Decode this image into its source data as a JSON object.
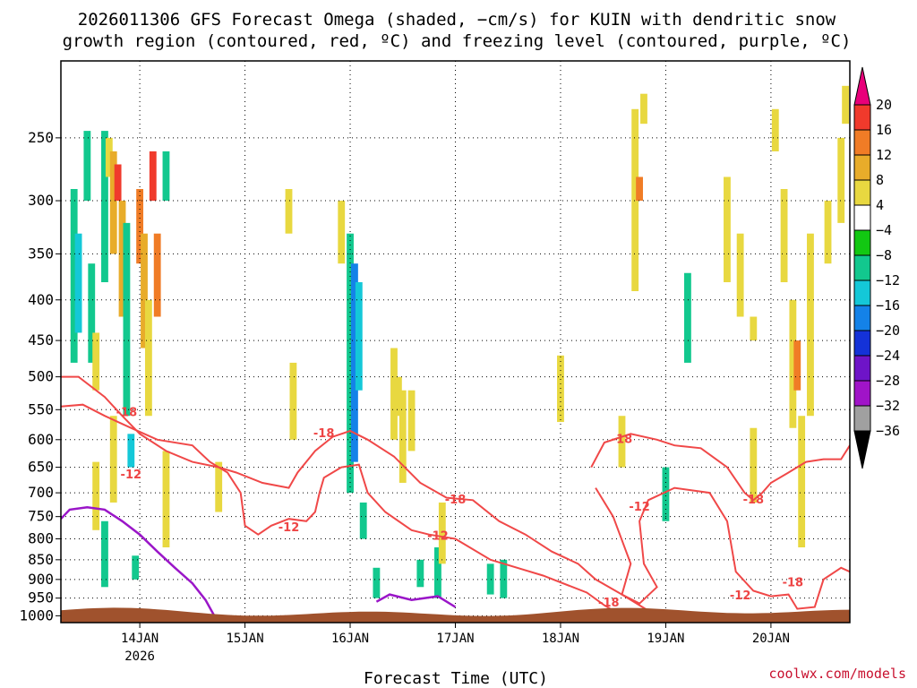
{
  "title": {
    "line1": "2026011306 GFS Forecast Omega (shaded, −cm/s) for KUIN with dendritic snow",
    "line2": "growth region (contoured, red, ºC) and freezing level (contoured, purple, ºC)"
  },
  "credit": "coolwx.com/models",
  "colors": {
    "dgz_contour": "#f04848",
    "freezing_contour": "#9a16c8",
    "terrain": "#a0522d",
    "grid": "#000000"
  },
  "chart_data": {
    "type": "heatmap",
    "xlabel": "Forecast Time (UTC)",
    "ylabel": "",
    "x_ticks": [
      {
        "day": "14JAN",
        "year": "2026",
        "t": 18
      },
      {
        "day": "15JAN",
        "year": "",
        "t": 42
      },
      {
        "day": "16JAN",
        "year": "",
        "t": 66
      },
      {
        "day": "17JAN",
        "year": "",
        "t": 90
      },
      {
        "day": "18JAN",
        "year": "",
        "t": 114
      },
      {
        "day": "19JAN",
        "year": "",
        "t": 138
      },
      {
        "day": "20JAN",
        "year": "",
        "t": 162
      }
    ],
    "xlim_hours": [
      0,
      180
    ],
    "y_ticks": [
      250,
      300,
      350,
      400,
      450,
      500,
      550,
      600,
      650,
      700,
      750,
      800,
      850,
      900,
      950,
      1000
    ],
    "ylim_hPa": [
      200,
      1020
    ],
    "y_scale": "log",
    "grid": true,
    "colorbar": {
      "levels": [
        "20",
        "16",
        "12",
        "8",
        "4",
        "−4",
        "−8",
        "−12",
        "−16",
        "−20",
        "−24",
        "−28",
        "−32",
        "−36"
      ],
      "colors": [
        "#e8007a",
        "#f03a2c",
        "#f07c26",
        "#e8ac2a",
        "#e8d840",
        "#ffffff",
        "#12c812",
        "#12c88e",
        "#14c8d8",
        "#1482e8",
        "#1432d8",
        "#6e14c8",
        "#a014c8",
        "#a0a0a0",
        "#000000"
      ]
    },
    "dgz_contour_labels": [
      {
        "text": "-18",
        "t": 15,
        "p": 555
      },
      {
        "text": "-12",
        "t": 16,
        "p": 665
      },
      {
        "text": "-12",
        "t": 52,
        "p": 775
      },
      {
        "text": "-18",
        "t": 60,
        "p": 590
      },
      {
        "text": "-18",
        "t": 90,
        "p": 715
      },
      {
        "text": "-12",
        "t": 86,
        "p": 795
      },
      {
        "text": "-18",
        "t": 128,
        "p": 600
      },
      {
        "text": "-12",
        "t": 132,
        "p": 730
      },
      {
        "text": "-18",
        "t": 125,
        "p": 965
      },
      {
        "text": "-18",
        "t": 158,
        "p": 715
      },
      {
        "text": "-12",
        "t": 155,
        "p": 945
      },
      {
        "text": "-18",
        "t": 167,
        "p": 910
      }
    ],
    "dgz_contours": [
      {
        "label": "-12 west",
        "points": [
          [
            0,
            545
          ],
          [
            5,
            542
          ],
          [
            10,
            560
          ],
          [
            16,
            580
          ],
          [
            22,
            600
          ],
          [
            30,
            610
          ],
          [
            34,
            640
          ],
          [
            38,
            660
          ],
          [
            41,
            700
          ],
          [
            42,
            770
          ],
          [
            45,
            790
          ],
          [
            48,
            770
          ],
          [
            52,
            755
          ],
          [
            56,
            760
          ],
          [
            58,
            740
          ],
          [
            59,
            700
          ],
          [
            60,
            670
          ],
          [
            64,
            650
          ],
          [
            68,
            645
          ],
          [
            70,
            700
          ],
          [
            74,
            740
          ],
          [
            80,
            780
          ],
          [
            84,
            790
          ],
          [
            90,
            800
          ],
          [
            98,
            850
          ],
          [
            110,
            890
          ],
          [
            120,
            935
          ],
          [
            124,
            970
          ],
          [
            128,
            1000
          ]
        ]
      },
      {
        "label": "-18 west",
        "points": [
          [
            0,
            500
          ],
          [
            4,
            500
          ],
          [
            10,
            530
          ],
          [
            14,
            560
          ],
          [
            18,
            590
          ],
          [
            24,
            620
          ],
          [
            30,
            640
          ],
          [
            36,
            650
          ],
          [
            40,
            660
          ],
          [
            46,
            680
          ],
          [
            52,
            690
          ],
          [
            54,
            660
          ],
          [
            58,
            620
          ],
          [
            62,
            595
          ],
          [
            66,
            585
          ],
          [
            70,
            600
          ],
          [
            76,
            630
          ],
          [
            82,
            680
          ],
          [
            88,
            710
          ],
          [
            94,
            715
          ],
          [
            100,
            760
          ],
          [
            106,
            790
          ],
          [
            112,
            830
          ],
          [
            118,
            860
          ],
          [
            122,
            900
          ],
          [
            128,
            940
          ],
          [
            134,
            985
          ]
        ]
      },
      {
        "label": "-18 east loop",
        "points": [
          [
            121,
            650
          ],
          [
            124,
            605
          ],
          [
            130,
            590
          ],
          [
            136,
            600
          ],
          [
            140,
            610
          ],
          [
            146,
            615
          ],
          [
            152,
            650
          ],
          [
            156,
            700
          ],
          [
            158,
            715
          ],
          [
            160,
            700
          ],
          [
            162,
            680
          ],
          [
            166,
            660
          ],
          [
            170,
            640
          ],
          [
            174,
            635
          ],
          [
            178,
            635
          ],
          [
            180,
            610
          ]
        ]
      },
      {
        "label": "-12 east loop",
        "points": [
          [
            122,
            690
          ],
          [
            126,
            750
          ],
          [
            130,
            860
          ],
          [
            128,
            940
          ],
          [
            132,
            965
          ],
          [
            136,
            920
          ],
          [
            133,
            860
          ],
          [
            132,
            760
          ],
          [
            134,
            715
          ],
          [
            140,
            690
          ],
          [
            148,
            700
          ],
          [
            152,
            760
          ],
          [
            154,
            880
          ],
          [
            158,
            930
          ],
          [
            162,
            945
          ],
          [
            166,
            940
          ],
          [
            168,
            980
          ],
          [
            172,
            975
          ],
          [
            174,
            900
          ],
          [
            178,
            870
          ],
          [
            180,
            880
          ]
        ]
      }
    ],
    "freezing_contour": {
      "label": "0",
      "points": [
        [
          0,
          755
        ],
        [
          2,
          735
        ],
        [
          6,
          730
        ],
        [
          10,
          735
        ],
        [
          14,
          760
        ],
        [
          18,
          790
        ],
        [
          22,
          830
        ],
        [
          26,
          870
        ],
        [
          30,
          910
        ],
        [
          33,
          955
        ],
        [
          35,
          1000
        ]
      ]
    },
    "freezing_blob": {
      "points": [
        [
          72,
          960
        ],
        [
          75,
          940
        ],
        [
          80,
          955
        ],
        [
          86,
          945
        ],
        [
          90,
          975
        ]
      ]
    },
    "omega_cells": [
      {
        "t": 3,
        "p0": 290,
        "p1": 480,
        "v": -8
      },
      {
        "t": 4,
        "p0": 330,
        "p1": 440,
        "v": -12
      },
      {
        "t": 6,
        "p0": 245,
        "p1": 300,
        "v": -8
      },
      {
        "t": 7,
        "p0": 360,
        "p1": 480,
        "v": -8
      },
      {
        "t": 8,
        "p0": 440,
        "p1": 520,
        "v": 4
      },
      {
        "t": 10,
        "p0": 245,
        "p1": 380,
        "v": -8
      },
      {
        "t": 11,
        "p0": 250,
        "p1": 280,
        "v": 4
      },
      {
        "t": 12,
        "p0": 260,
        "p1": 350,
        "v": 8
      },
      {
        "t": 13,
        "p0": 270,
        "p1": 300,
        "v": 16
      },
      {
        "t": 14,
        "p0": 300,
        "p1": 420,
        "v": 8
      },
      {
        "t": 15,
        "p0": 320,
        "p1": 560,
        "v": -8
      },
      {
        "t": 16,
        "p0": 590,
        "p1": 650,
        "v": -12
      },
      {
        "t": 18,
        "p0": 290,
        "p1": 360,
        "v": 12
      },
      {
        "t": 19,
        "p0": 330,
        "p1": 460,
        "v": 8
      },
      {
        "t": 20,
        "p0": 400,
        "p1": 560,
        "v": 4
      },
      {
        "t": 21,
        "p0": 260,
        "p1": 300,
        "v": 16
      },
      {
        "t": 22,
        "p0": 330,
        "p1": 420,
        "v": 12
      },
      {
        "t": 24,
        "p0": 260,
        "p1": 300,
        "v": -8
      },
      {
        "t": 8,
        "p0": 640,
        "p1": 780,
        "v": 4
      },
      {
        "t": 10,
        "p0": 760,
        "p1": 920,
        "v": -8
      },
      {
        "t": 12,
        "p0": 560,
        "p1": 720,
        "v": 4
      },
      {
        "t": 17,
        "p0": 840,
        "p1": 900,
        "v": -8
      },
      {
        "t": 24,
        "p0": 620,
        "p1": 820,
        "v": 4
      },
      {
        "t": 36,
        "p0": 640,
        "p1": 740,
        "v": 4
      },
      {
        "t": 52,
        "p0": 290,
        "p1": 330,
        "v": 4
      },
      {
        "t": 53,
        "p0": 480,
        "p1": 600,
        "v": 4
      },
      {
        "t": 64,
        "p0": 300,
        "p1": 360,
        "v": 4
      },
      {
        "t": 66,
        "p0": 330,
        "p1": 700,
        "v": -8
      },
      {
        "t": 67,
        "p0": 360,
        "p1": 640,
        "v": -16
      },
      {
        "t": 68,
        "p0": 380,
        "p1": 520,
        "v": -12
      },
      {
        "t": 69,
        "p0": 720,
        "p1": 800,
        "v": -8
      },
      {
        "t": 72,
        "p0": 870,
        "p1": 950,
        "v": -8
      },
      {
        "t": 76,
        "p0": 460,
        "p1": 600,
        "v": 4
      },
      {
        "t": 77,
        "p0": 500,
        "p1": 560,
        "v": 4
      },
      {
        "t": 78,
        "p0": 520,
        "p1": 680,
        "v": 4
      },
      {
        "t": 80,
        "p0": 520,
        "p1": 620,
        "v": 4
      },
      {
        "t": 82,
        "p0": 850,
        "p1": 920,
        "v": -8
      },
      {
        "t": 86,
        "p0": 820,
        "p1": 950,
        "v": -8
      },
      {
        "t": 87,
        "p0": 720,
        "p1": 860,
        "v": 4
      },
      {
        "t": 98,
        "p0": 860,
        "p1": 940,
        "v": -8
      },
      {
        "t": 101,
        "p0": 850,
        "p1": 950,
        "v": -8
      },
      {
        "t": 114,
        "p0": 470,
        "p1": 570,
        "v": 4
      },
      {
        "t": 131,
        "p0": 230,
        "p1": 390,
        "v": 4
      },
      {
        "t": 133,
        "p0": 220,
        "p1": 240,
        "v": 4
      },
      {
        "t": 132,
        "p0": 280,
        "p1": 300,
        "v": 12
      },
      {
        "t": 128,
        "p0": 560,
        "p1": 650,
        "v": 4
      },
      {
        "t": 138,
        "p0": 650,
        "p1": 760,
        "v": -8
      },
      {
        "t": 143,
        "p0": 370,
        "p1": 480,
        "v": -8
      },
      {
        "t": 152,
        "p0": 280,
        "p1": 380,
        "v": 4
      },
      {
        "t": 155,
        "p0": 330,
        "p1": 420,
        "v": 4
      },
      {
        "t": 158,
        "p0": 420,
        "p1": 450,
        "v": 4
      },
      {
        "t": 158,
        "p0": 580,
        "p1": 720,
        "v": 4
      },
      {
        "t": 163,
        "p0": 230,
        "p1": 260,
        "v": 4
      },
      {
        "t": 165,
        "p0": 290,
        "p1": 380,
        "v": 4
      },
      {
        "t": 167,
        "p0": 400,
        "p1": 580,
        "v": 4
      },
      {
        "t": 168,
        "p0": 450,
        "p1": 520,
        "v": 12
      },
      {
        "t": 169,
        "p0": 560,
        "p1": 820,
        "v": 4
      },
      {
        "t": 171,
        "p0": 330,
        "p1": 560,
        "v": 4
      },
      {
        "t": 175,
        "p0": 300,
        "p1": 360,
        "v": 4
      },
      {
        "t": 178,
        "p0": 250,
        "p1": 320,
        "v": 4
      },
      {
        "t": 179,
        "p0": 215,
        "p1": 240,
        "v": 4
      }
    ]
  }
}
